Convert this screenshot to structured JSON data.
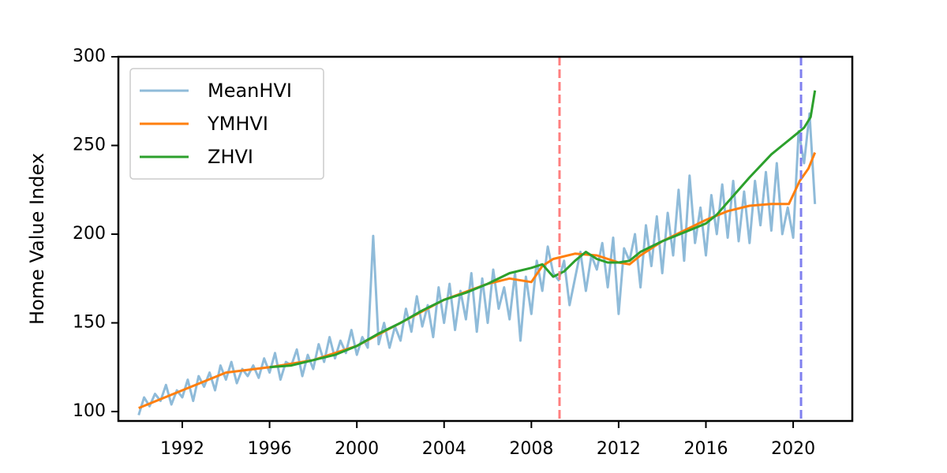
{
  "chart_data": {
    "type": "line",
    "ylabel": "Home Value Index",
    "xlim": [
      1989.07,
      2022.71
    ],
    "ylim": [
      94.7,
      300
    ],
    "xticks": [
      1992,
      1996,
      2000,
      2004,
      2008,
      2012,
      2016,
      2020
    ],
    "yticks": [
      100,
      150,
      200,
      250,
      300
    ],
    "legend": "upper left",
    "vlines": [
      {
        "x": 2009.29,
        "color": "#ff7f7f"
      },
      {
        "x": 2020.36,
        "color": "#7f7fef"
      }
    ],
    "series": [
      {
        "name": "MeanHVI",
        "color": "#8fbbd9",
        "x": [
          1990,
          1990.25,
          1990.5,
          1990.75,
          1991,
          1991.25,
          1991.5,
          1991.75,
          1992,
          1992.25,
          1992.5,
          1992.75,
          1993,
          1993.25,
          1993.5,
          1993.75,
          1994,
          1994.25,
          1994.5,
          1994.75,
          1995,
          1995.25,
          1995.5,
          1995.75,
          1996,
          1996.25,
          1996.5,
          1996.75,
          1997,
          1997.25,
          1997.5,
          1997.75,
          1998,
          1998.25,
          1998.5,
          1998.75,
          1999,
          1999.25,
          1999.5,
          1999.75,
          2000,
          2000.25,
          2000.5,
          2000.75,
          2001,
          2001.25,
          2001.5,
          2001.75,
          2002,
          2002.25,
          2002.5,
          2002.75,
          2003,
          2003.25,
          2003.5,
          2003.75,
          2004,
          2004.25,
          2004.5,
          2004.75,
          2005,
          2005.25,
          2005.5,
          2005.75,
          2006,
          2006.25,
          2006.5,
          2006.75,
          2007,
          2007.25,
          2007.5,
          2007.75,
          2008,
          2008.25,
          2008.5,
          2008.75,
          2009,
          2009.25,
          2009.5,
          2009.75,
          2010,
          2010.25,
          2010.5,
          2010.75,
          2011,
          2011.25,
          2011.5,
          2011.75,
          2012,
          2012.25,
          2012.5,
          2012.75,
          2013,
          2013.25,
          2013.5,
          2013.75,
          2014,
          2014.25,
          2014.5,
          2014.75,
          2015,
          2015.25,
          2015.5,
          2015.75,
          2016,
          2016.25,
          2016.5,
          2016.75,
          2017,
          2017.25,
          2017.5,
          2017.75,
          2018,
          2018.25,
          2018.5,
          2018.75,
          2019,
          2019.25,
          2019.5,
          2019.75,
          2020,
          2020.25,
          2020.5,
          2020.75,
          2021
        ],
        "values": [
          98,
          108,
          103,
          110,
          106,
          115,
          104,
          112,
          108,
          118,
          106,
          120,
          114,
          122,
          112,
          126,
          118,
          128,
          116,
          124,
          120,
          126,
          119,
          130,
          122,
          133,
          118,
          128,
          126,
          135,
          120,
          132,
          124,
          138,
          128,
          142,
          130,
          140,
          133,
          146,
          132,
          142,
          136,
          199,
          138,
          150,
          136,
          148,
          140,
          158,
          145,
          165,
          148,
          160,
          142,
          170,
          150,
          172,
          146,
          168,
          152,
          178,
          145,
          175,
          150,
          180,
          158,
          170,
          152,
          178,
          140,
          176,
          155,
          185,
          168,
          193,
          178,
          174,
          185,
          160,
          175,
          190,
          168,
          188,
          180,
          195,
          170,
          198,
          155,
          192,
          185,
          200,
          170,
          205,
          182,
          210,
          178,
          212,
          188,
          225,
          185,
          233,
          195,
          215,
          188,
          222,
          200,
          228,
          198,
          230,
          196,
          224,
          195,
          230,
          205,
          235,
          202,
          240,
          200,
          215,
          198,
          258,
          240,
          268,
          217
        ]
      },
      {
        "name": "YMHVI",
        "color": "#ff7f0e",
        "x": [
          1990,
          1992,
          1994,
          1996,
          1998,
          2000,
          2002,
          2004,
          2006,
          2007,
          2008,
          2008.5,
          2009,
          2010,
          2011,
          2012,
          2012.5,
          2013,
          2014,
          2015,
          2016,
          2017,
          2018,
          2019,
          2019.8,
          2020.3,
          2020.7,
          2021
        ],
        "values": [
          102,
          112,
          122,
          125,
          129,
          137,
          150,
          163,
          172,
          175,
          173,
          182,
          186,
          189,
          188,
          184,
          183,
          188,
          196,
          202,
          208,
          213,
          216,
          217,
          217,
          230,
          237,
          246
        ]
      },
      {
        "name": "ZHVI",
        "color": "#2ca02c",
        "x": [
          1996,
          1997,
          1998,
          1999,
          2000,
          2001,
          2002,
          2003,
          2004,
          2005,
          2006,
          2007,
          2008,
          2008.5,
          2009,
          2009.5,
          2010,
          2010.5,
          2011,
          2011.5,
          2012,
          2012.5,
          2013,
          2014,
          2015,
          2016,
          2016.5,
          2017,
          2018,
          2019,
          2019.5,
          2020,
          2020.5,
          2020.8,
          2021
        ],
        "values": [
          125,
          126,
          129,
          132,
          137,
          144,
          150,
          157,
          163,
          167,
          172,
          178,
          181,
          183,
          176,
          179,
          185,
          190,
          186,
          184,
          184,
          185,
          190,
          196,
          201,
          206,
          211,
          218,
          232,
          245,
          250,
          255,
          260,
          266,
          281
        ]
      }
    ]
  }
}
